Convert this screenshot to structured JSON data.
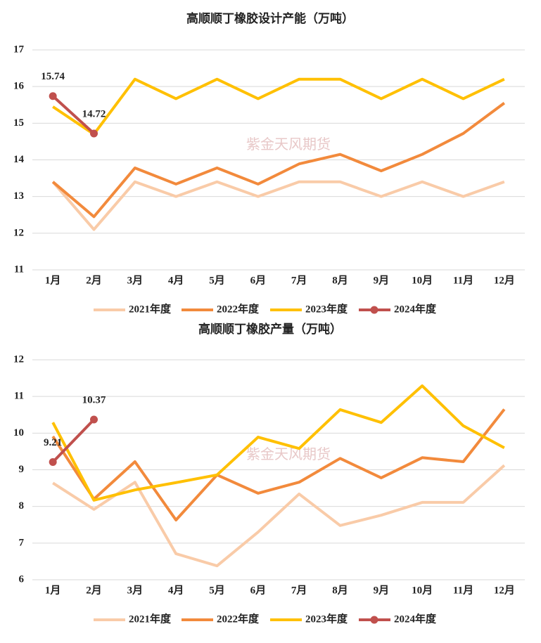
{
  "watermark": "紫金天风期货",
  "chart_data": [
    {
      "type": "line",
      "title": "高顺顺丁橡胶设计产能（万吨）",
      "categories": [
        "1月",
        "2月",
        "3月",
        "4月",
        "5月",
        "6月",
        "7月",
        "8月",
        "9月",
        "10月",
        "11月",
        "12月"
      ],
      "ylim": [
        11,
        17
      ],
      "yticks": [
        11,
        12,
        13,
        14,
        15,
        16,
        17
      ],
      "grid": true,
      "legend": "bottom",
      "series": [
        {
          "name": "2021年度",
          "color": "#f9cba8",
          "values": [
            13.4,
            12.1,
            13.4,
            13.0,
            13.4,
            13.0,
            13.4,
            13.4,
            13.0,
            13.4,
            13.0,
            13.4
          ]
        },
        {
          "name": "2022年度",
          "color": "#f28a3c",
          "values": [
            13.4,
            12.45,
            13.78,
            13.34,
            13.78,
            13.34,
            13.89,
            14.15,
            13.7,
            14.15,
            14.72,
            15.55
          ]
        },
        {
          "name": "2023年度",
          "color": "#ffc000",
          "values": [
            15.45,
            14.7,
            16.2,
            15.67,
            16.2,
            15.67,
            16.2,
            16.2,
            15.67,
            16.2,
            15.67,
            16.2
          ]
        },
        {
          "name": "2024年度",
          "color": "#c0504d",
          "markers": true,
          "data_labels": true,
          "values": [
            15.74,
            14.72,
            null,
            null,
            null,
            null,
            null,
            null,
            null,
            null,
            null,
            null
          ]
        }
      ]
    },
    {
      "type": "line",
      "title": "高顺顺丁橡胶产量（万吨）",
      "categories": [
        "1月",
        "2月",
        "3月",
        "4月",
        "5月",
        "6月",
        "7月",
        "8月",
        "9月",
        "10月",
        "11月",
        "12月"
      ],
      "ylim": [
        6,
        12
      ],
      "yticks": [
        6,
        7,
        8,
        9,
        10,
        11,
        12
      ],
      "grid": true,
      "legend": "bottom",
      "series": [
        {
          "name": "2021年度",
          "color": "#f9cba8",
          "values": [
            8.64,
            7.92,
            8.66,
            6.71,
            6.38,
            7.3,
            8.34,
            7.48,
            7.76,
            8.11,
            8.11,
            9.12
          ]
        },
        {
          "name": "2022年度",
          "color": "#f28a3c",
          "values": [
            9.91,
            8.2,
            9.22,
            7.63,
            8.86,
            8.36,
            8.66,
            9.31,
            8.78,
            9.33,
            9.22,
            10.65
          ]
        },
        {
          "name": "2023年度",
          "color": "#ffc000",
          "values": [
            10.29,
            8.17,
            8.45,
            8.65,
            8.86,
            9.89,
            9.58,
            10.64,
            10.29,
            11.29,
            10.2,
            9.6
          ]
        },
        {
          "name": "2024年度",
          "color": "#c0504d",
          "markers": true,
          "data_labels": true,
          "values": [
            9.21,
            10.37,
            null,
            null,
            null,
            null,
            null,
            null,
            null,
            null,
            null,
            null
          ]
        }
      ]
    }
  ]
}
